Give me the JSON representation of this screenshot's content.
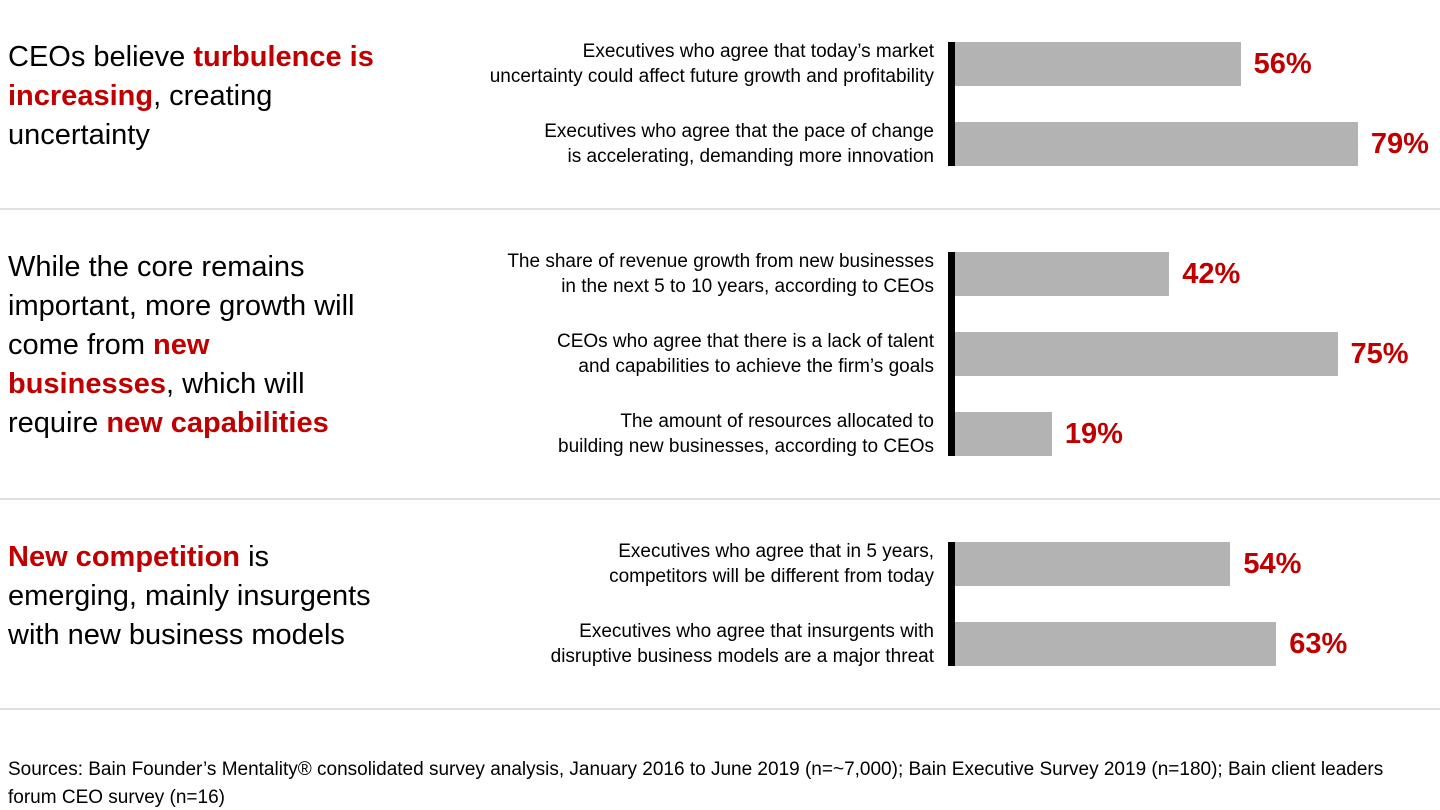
{
  "colors": {
    "accent_red": "#c00000",
    "bar_gray": "#b3b3b3",
    "axis_black": "#000000",
    "divider_gray": "#e0e0e0",
    "background": "#ffffff"
  },
  "chart_data": {
    "type": "bar",
    "orientation": "horizontal",
    "unit": "percent",
    "xlim": [
      0,
      100
    ],
    "grid": false,
    "legend": "none",
    "sections": [
      {
        "headline_parts": [
          {
            "text": "CEOs believe ",
            "highlight": false
          },
          {
            "text": "turbulence is increasing",
            "highlight": true
          },
          {
            "text": ", creating uncertainty",
            "highlight": false
          }
        ],
        "bars": [
          {
            "label_lines": [
              "Executives who agree that today’s market",
              "uncertainty could affect future growth and profitability"
            ],
            "value": 56,
            "value_label": "56%"
          },
          {
            "label_lines": [
              "Executives who agree that the pace of change",
              "is accelerating, demanding more innovation"
            ],
            "value": 79,
            "value_label": "79%"
          }
        ]
      },
      {
        "headline_parts": [
          {
            "text": "While the core remains important, more growth will come from ",
            "highlight": false
          },
          {
            "text": "new businesses",
            "highlight": true
          },
          {
            "text": ", which will require ",
            "highlight": false
          },
          {
            "text": "new capabilities",
            "highlight": true
          }
        ],
        "bars": [
          {
            "label_lines": [
              "The share of revenue growth from new businesses",
              "in the next 5 to 10 years, according to CEOs"
            ],
            "value": 42,
            "value_label": "42%"
          },
          {
            "label_lines": [
              "CEOs who agree that there is a lack of talent",
              "and capabilities to achieve the firm’s goals"
            ],
            "value": 75,
            "value_label": "75%"
          },
          {
            "label_lines": [
              "The amount of resources allocated to",
              "building new businesses, according to CEOs"
            ],
            "value": 19,
            "value_label": "19%"
          }
        ]
      },
      {
        "headline_parts": [
          {
            "text": "New competition",
            "highlight": true
          },
          {
            "text": " is emerging, mainly insurgents with new business models",
            "highlight": false
          }
        ],
        "bars": [
          {
            "label_lines": [
              "Executives who agree that in 5 years,",
              "competitors will be different from today"
            ],
            "value": 54,
            "value_label": "54%"
          },
          {
            "label_lines": [
              "Executives who agree that insurgents with",
              "disruptive business models are a major threat"
            ],
            "value": 63,
            "value_label": "63%"
          }
        ]
      }
    ]
  },
  "footer": {
    "source_text": "Sources: Bain Founder’s Mentality® consolidated survey analysis, January 2016 to June 2019 (n=~7,000); Bain Executive Survey 2019 (n=180); Bain client leaders forum CEO survey (n=16)"
  }
}
